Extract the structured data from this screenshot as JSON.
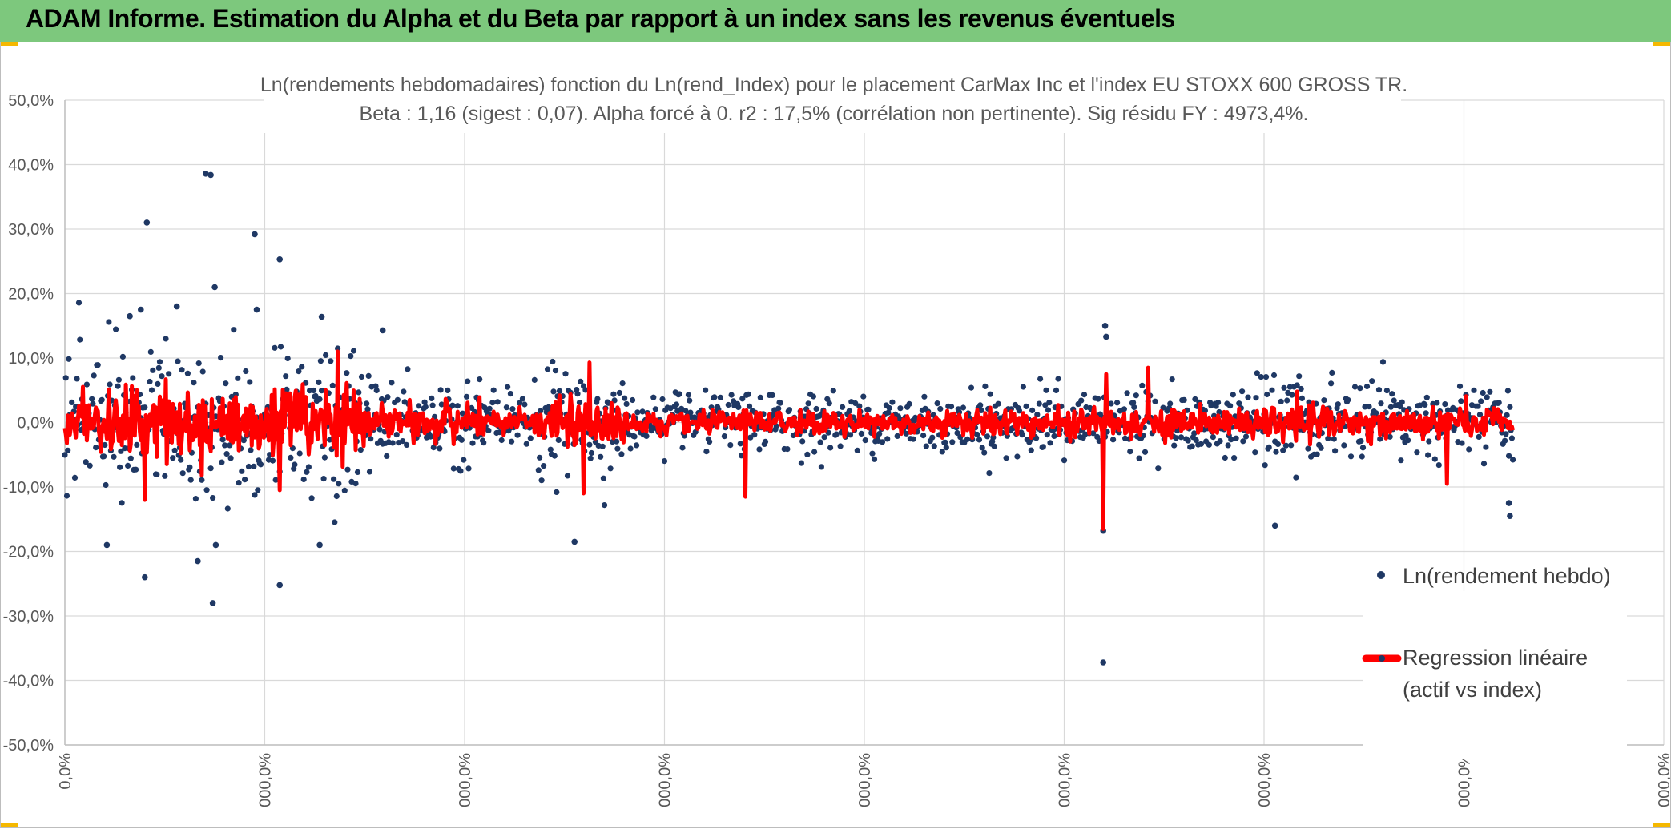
{
  "header": {
    "title": "ADAM Informe. Estimation du Alpha et du Beta par rapport à un index sans les revenus éventuels"
  },
  "colors": {
    "banner": "#7dc87d",
    "corner_accent": "#f5b800",
    "points": "#1f3864",
    "regression": "#ff0000",
    "grid": "#d9d9d9",
    "text": "#595959"
  },
  "chart_data": {
    "type": "scatter",
    "title": "Ln(rendements hebdomadaires) fonction du Ln(rend_Index) pour le placement CarMax Inc et l'index EU STOXX 600 GROSS TR.",
    "subtitle": "Beta : 1,16 (sigest : 0,07). Alpha forcé à 0. r2 : 17,5% (corrélation non pertinente). Sig résidu FY : 4973,4%.",
    "beta": 1.16,
    "sigest": 0.07,
    "alpha": 0,
    "r2": 0.175,
    "ylim": [
      -0.5,
      0.5
    ],
    "y_ticks": [
      0.5,
      0.4,
      0.3,
      0.2,
      0.1,
      0.0,
      -0.1,
      -0.2,
      -0.3,
      -0.4,
      -0.5
    ],
    "y_tick_labels": [
      "50,0%",
      "40,0%",
      "30,0%",
      "20,0%",
      "10,0%",
      "0,0%",
      "-10,0%",
      "-20,0%",
      "-30,0%",
      "-40,0%",
      "-50,0%"
    ],
    "x_tick_labels": [
      "0,0%",
      "000,0%",
      "000,0%",
      "000,0%",
      "000,0%",
      "000,0%",
      "000,0%",
      "000,0%",
      "000,0%"
    ],
    "n_points": 1450,
    "grid": true,
    "legend_position": "right",
    "series": [
      {
        "name": "Ln(rendement hebdo)",
        "kind": "points",
        "notable_points": [
          {
            "i": 82,
            "y": 0.31
          },
          {
            "i": 141,
            "y": 0.386
          },
          {
            "i": 146,
            "y": 0.384
          },
          {
            "i": 190,
            "y": 0.292
          },
          {
            "i": 215,
            "y": 0.253
          },
          {
            "i": 150,
            "y": 0.21
          },
          {
            "i": 76,
            "y": 0.175
          },
          {
            "i": 192,
            "y": 0.175
          },
          {
            "i": 65,
            "y": 0.165
          },
          {
            "i": 112,
            "y": 0.18
          },
          {
            "i": 257,
            "y": 0.164
          },
          {
            "i": 318,
            "y": 0.143
          },
          {
            "i": 1041,
            "y": 0.15
          },
          {
            "i": 1042,
            "y": 0.133
          },
          {
            "i": 42,
            "y": -0.19
          },
          {
            "i": 80,
            "y": -0.24
          },
          {
            "i": 133,
            "y": -0.215
          },
          {
            "i": 148,
            "y": -0.28
          },
          {
            "i": 151,
            "y": -0.19
          },
          {
            "i": 215,
            "y": -0.252
          },
          {
            "i": 255,
            "y": -0.19
          },
          {
            "i": 510,
            "y": -0.185
          },
          {
            "i": 1039,
            "y": -0.372
          },
          {
            "i": 1039,
            "y": -0.168
          },
          {
            "i": 1211,
            "y": -0.16
          },
          {
            "i": 1446,
            "y": -0.145
          },
          {
            "i": 1445,
            "y": -0.125
          }
        ]
      },
      {
        "name": "Regression linéaire (actif vs index)",
        "kind": "line",
        "notable_points": [
          {
            "i": 80,
            "y": -0.12
          },
          {
            "i": 215,
            "y": -0.105
          },
          {
            "i": 273,
            "y": 0.11
          },
          {
            "i": 525,
            "y": 0.093
          },
          {
            "i": 519,
            "y": -0.11
          },
          {
            "i": 681,
            "y": -0.115
          },
          {
            "i": 1039,
            "y": -0.165
          },
          {
            "i": 1042,
            "y": 0.075
          },
          {
            "i": 1084,
            "y": 0.085
          },
          {
            "i": 1383,
            "y": -0.095
          }
        ]
      }
    ]
  },
  "legend": {
    "points_label": "Ln(rendement hebdo)",
    "line_label_1": "Regression linéaire",
    "line_label_2": "(actif vs index)"
  }
}
